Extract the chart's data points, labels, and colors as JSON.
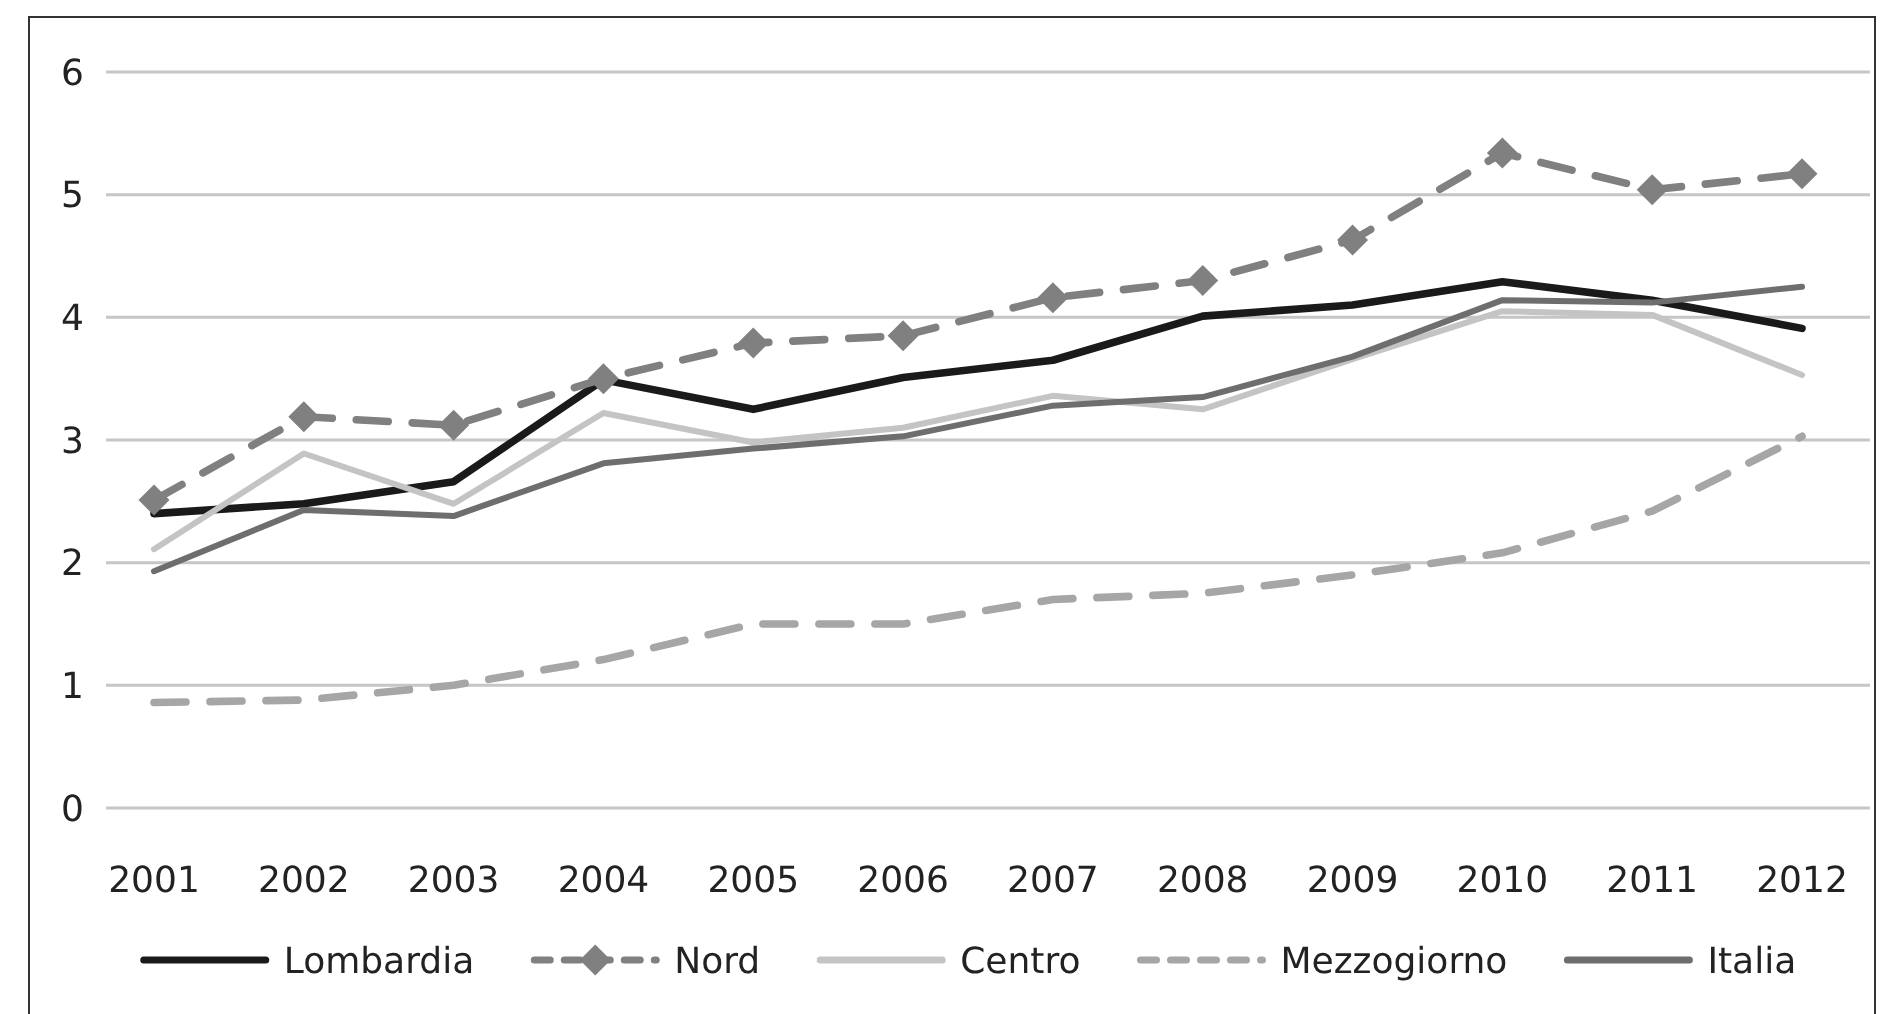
{
  "chart_data": {
    "type": "line",
    "categories": [
      "2001",
      "2002",
      "2003",
      "2004",
      "2005",
      "2006",
      "2007",
      "2008",
      "2009",
      "2010",
      "2011",
      "2012"
    ],
    "ylim": [
      0,
      6
    ],
    "yticks": [
      0,
      1,
      2,
      3,
      4,
      5,
      6
    ],
    "grid": "y",
    "legend": "bottom",
    "series": [
      {
        "name": "Lombardia",
        "color": "#1a1a1a",
        "line_style": "solid",
        "marker": "none",
        "values": [
          2.4,
          2.48,
          2.66,
          3.49,
          3.25,
          3.51,
          3.65,
          4.01,
          4.1,
          4.29,
          4.14,
          3.91
        ]
      },
      {
        "name": "Nord",
        "color": "#808080",
        "line_style": "dashed",
        "marker": "diamond",
        "values": [
          2.51,
          3.19,
          3.12,
          3.5,
          3.79,
          3.85,
          4.16,
          4.3,
          4.63,
          5.34,
          5.04,
          5.17
        ]
      },
      {
        "name": "Centro",
        "color": "#c4c4c4",
        "line_style": "solid",
        "marker": "none",
        "values": [
          2.11,
          2.89,
          2.48,
          3.22,
          2.98,
          3.1,
          3.36,
          3.25,
          3.66,
          4.05,
          4.02,
          3.53
        ]
      },
      {
        "name": "Mezzogiorno",
        "color": "#a6a6a6",
        "line_style": "dashed",
        "marker": "none",
        "values": [
          0.86,
          0.88,
          1.0,
          1.21,
          1.5,
          1.5,
          1.7,
          1.75,
          1.9,
          2.08,
          2.42,
          3.03
        ]
      },
      {
        "name": "Italia",
        "color": "#6e6e6e",
        "line_style": "solid",
        "marker": "none",
        "values": [
          1.93,
          2.43,
          2.38,
          2.81,
          2.93,
          3.03,
          3.28,
          3.35,
          3.68,
          4.14,
          4.12,
          4.25
        ]
      }
    ]
  }
}
